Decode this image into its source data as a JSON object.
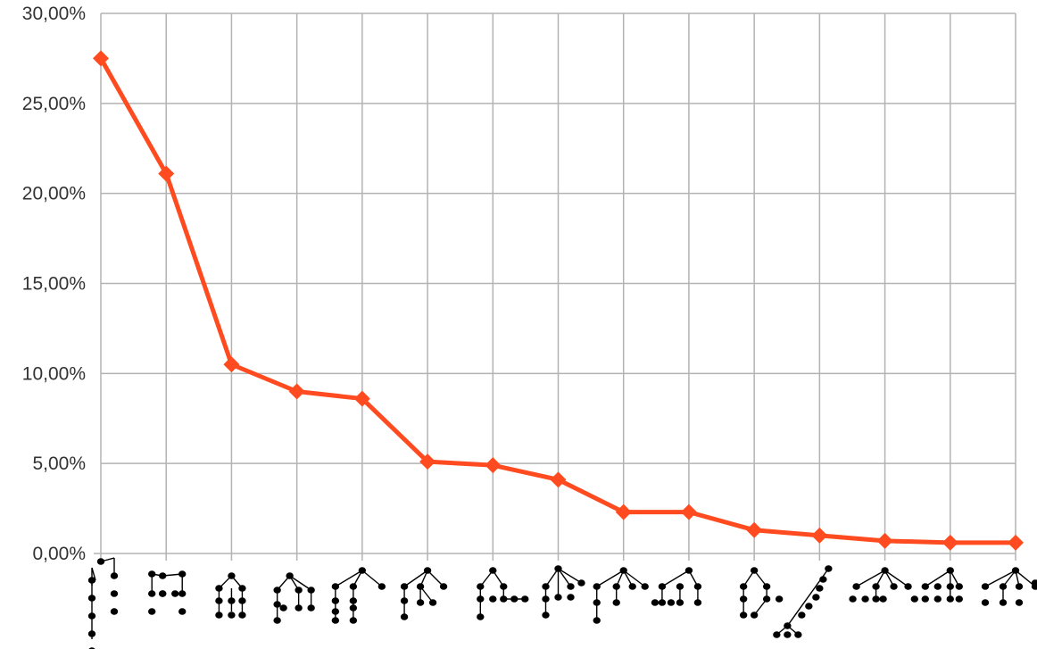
{
  "colors": {
    "series": "#ff4b1f",
    "grid": "#b3b3b3",
    "text": "#333333",
    "tree": "#000000"
  },
  "chart_data": {
    "type": "line",
    "title": "",
    "xlabel": "",
    "ylabel": "",
    "ylim": [
      0,
      30
    ],
    "y_ticks": [
      0,
      5,
      10,
      15,
      20,
      25,
      30
    ],
    "y_tick_labels": [
      "0,00%",
      "5,00%",
      "10,00%",
      "15,00%",
      "20,00%",
      "25,00%",
      "30,00%"
    ],
    "grid": true,
    "legend": "none",
    "marker": "diamond",
    "categories": [
      "1",
      "2",
      "3",
      "4",
      "5",
      "6",
      "7",
      "8",
      "9",
      "10",
      "11",
      "12",
      "13",
      "14",
      "15"
    ],
    "category_labels_note": "x-axis categories are shown as small tree-structure pictograms",
    "series": [
      {
        "values": [
          27.5,
          21.1,
          10.5,
          9.0,
          8.6,
          5.1,
          4.9,
          4.1,
          2.3,
          2.3,
          1.3,
          1.0,
          0.7,
          0.6,
          0.6
        ]
      }
    ]
  }
}
